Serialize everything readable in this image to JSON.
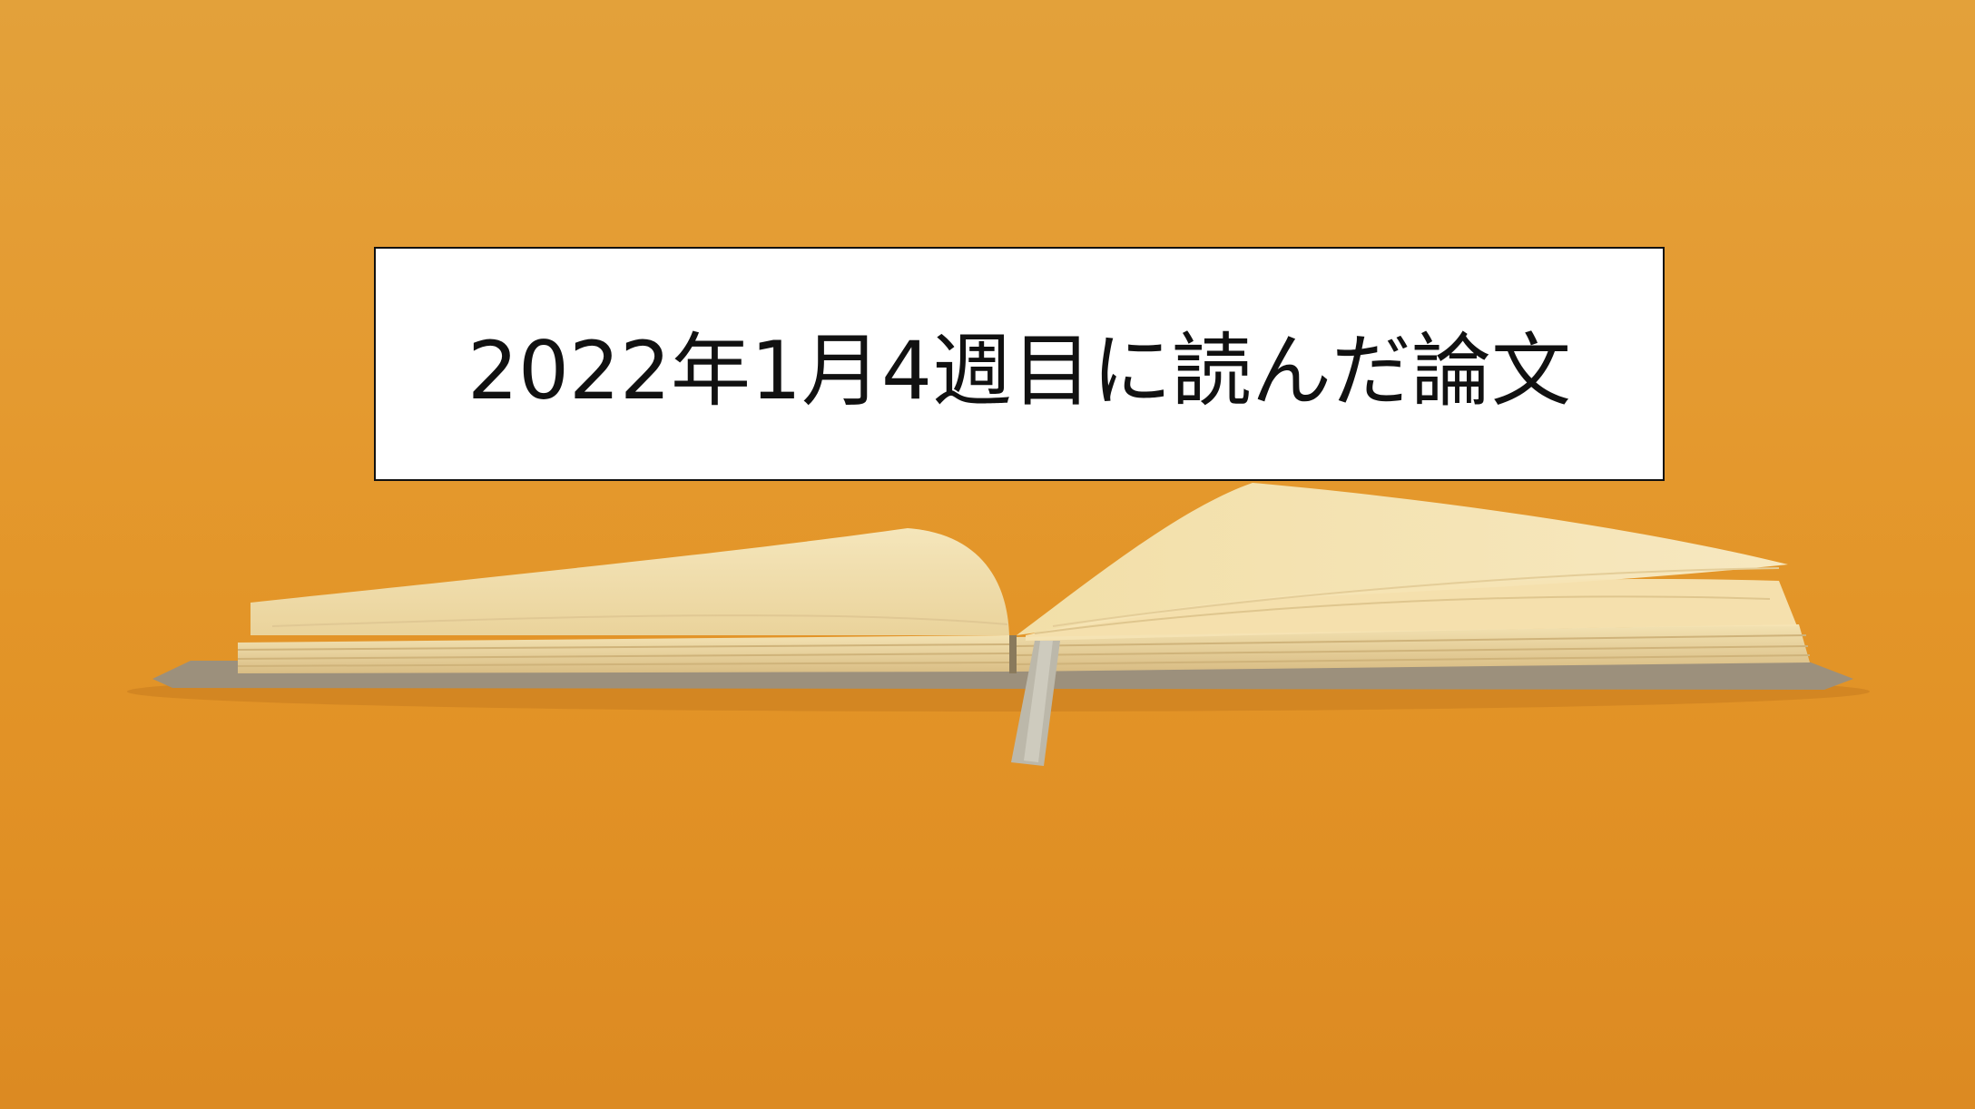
{
  "photo": {
    "subject": "open-notebook",
    "background_color": "#e39a2e",
    "page_color": "#f4e3b4",
    "ribbon_color": "#b9b6a8"
  },
  "overlay": {
    "title": "2022年1月4週目に読んだ論文"
  }
}
